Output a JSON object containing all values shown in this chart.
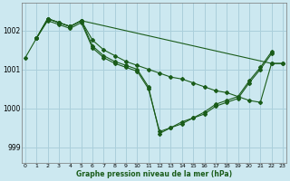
{
  "background_color": "#cce8f0",
  "grid_color": "#aacfdb",
  "line_color": "#1a5c1a",
  "ylim": [
    998.6,
    1002.7
  ],
  "xlim": [
    -0.3,
    23.3
  ],
  "yticks": [
    999,
    1000,
    1001,
    1002
  ],
  "xticks": [
    0,
    1,
    2,
    3,
    4,
    5,
    6,
    7,
    8,
    9,
    10,
    11,
    12,
    13,
    14,
    15,
    16,
    17,
    18,
    19,
    20,
    21,
    22,
    23
  ],
  "xlabel": "Graphe pression niveau de la mer (hPa)",
  "series": [
    {
      "x": [
        0,
        1,
        2,
        3,
        4,
        5,
        6,
        7,
        8,
        9,
        10,
        11,
        12,
        13,
        14,
        15,
        16,
        17,
        18,
        19,
        20,
        21,
        22,
        23
      ],
      "y": [
        1001.3,
        1001.8,
        1002.3,
        1002.2,
        1002.1,
        1002.25,
        1001.75,
        1001.5,
        1001.35,
        1001.2,
        1001.1,
        1001.0,
        1000.9,
        1000.8,
        1000.75,
        1000.65,
        1000.55,
        1000.45,
        1000.4,
        1000.3,
        1000.2,
        1000.15,
        1001.15,
        1001.15
      ]
    },
    {
      "x": [
        1,
        2,
        3,
        4,
        5,
        6,
        7,
        8,
        9,
        10,
        11,
        12,
        13,
        14,
        15,
        16,
        17,
        18,
        19,
        20,
        21,
        22
      ],
      "y": [
        1001.8,
        1002.3,
        1002.2,
        1002.1,
        1002.25,
        1001.6,
        1001.35,
        1001.2,
        1001.1,
        1001.0,
        1000.55,
        999.35,
        999.5,
        999.6,
        999.75,
        999.85,
        1000.05,
        1000.15,
        1000.25,
        1000.65,
        1001.0,
        1001.4
      ]
    },
    {
      "x": [
        1,
        2,
        3,
        4,
        5,
        6,
        7,
        8,
        9,
        10,
        11,
        12,
        13,
        14,
        15,
        16,
        17,
        18,
        19,
        20,
        21,
        22
      ],
      "y": [
        1001.8,
        1002.25,
        1002.15,
        1002.05,
        1002.2,
        1001.55,
        1001.3,
        1001.15,
        1001.05,
        1000.95,
        1000.5,
        999.4,
        999.5,
        999.65,
        999.75,
        999.9,
        1000.1,
        1000.2,
        1000.3,
        1000.7,
        1001.05,
        1001.45
      ]
    },
    {
      "x": [
        1,
        2,
        3,
        4,
        5,
        22,
        23
      ],
      "y": [
        1001.8,
        1002.3,
        1002.2,
        1002.1,
        1002.25,
        1001.15,
        1001.15
      ]
    }
  ]
}
